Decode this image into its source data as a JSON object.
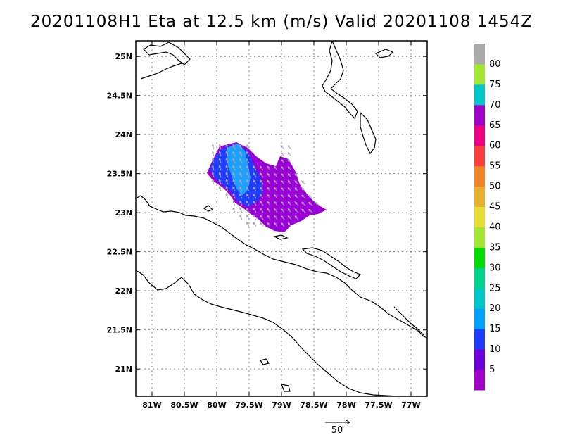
{
  "title": "20201108H1 Eta at 12.5 km (m/s) Valid 20201108 1454Z",
  "map": {
    "lon_range": [
      -81.25,
      -76.75
    ],
    "lat_range": [
      20.65,
      25.2
    ],
    "lon_ticks": [
      {
        "value": -81,
        "label": "81W"
      },
      {
        "value": -80.5,
        "label": "80.5W"
      },
      {
        "value": -80,
        "label": "80W"
      },
      {
        "value": -79.5,
        "label": "79.5W"
      },
      {
        "value": -79,
        "label": "79W"
      },
      {
        "value": -78.5,
        "label": "78.5W"
      },
      {
        "value": -78,
        "label": "78W"
      },
      {
        "value": -77.5,
        "label": "77.5W"
      },
      {
        "value": -77,
        "label": "77W"
      }
    ],
    "lat_ticks": [
      {
        "value": 25,
        "label": "25N"
      },
      {
        "value": 24.5,
        "label": "24.5N"
      },
      {
        "value": 24,
        "label": "24N"
      },
      {
        "value": 23.5,
        "label": "23.5N"
      },
      {
        "value": 23,
        "label": "23N"
      },
      {
        "value": 22.5,
        "label": "22.5N"
      },
      {
        "value": 22,
        "label": "22N"
      },
      {
        "value": 21.5,
        "label": "21.5N"
      },
      {
        "value": 21,
        "label": "21N"
      }
    ],
    "grid": true,
    "wind_field": {
      "dominant_speed_range_ms": [
        5,
        20
      ],
      "colors": {
        "weak": "#9b00d8",
        "mid": "#1f3cff",
        "strong": "#1ea0ff",
        "vector": "#a9a9a9"
      }
    }
  },
  "colorbar": {
    "colors": [
      "#a000c8",
      "#6e00dc",
      "#1e3cff",
      "#00a0ff",
      "#00c8c8",
      "#00d28c",
      "#00dc00",
      "#a0e632",
      "#e6dc32",
      "#e6af2d",
      "#f08228",
      "#fa3c3c",
      "#f00082",
      "#a000c8",
      "#00c8c8",
      "#a0e632",
      "#aaaaaa"
    ],
    "labels": [
      "5",
      "10",
      "15",
      "20",
      "25",
      "30",
      "35",
      "40",
      "45",
      "50",
      "55",
      "60",
      "65",
      "70",
      "75",
      "80"
    ]
  },
  "reference_vector": {
    "label": "50"
  }
}
